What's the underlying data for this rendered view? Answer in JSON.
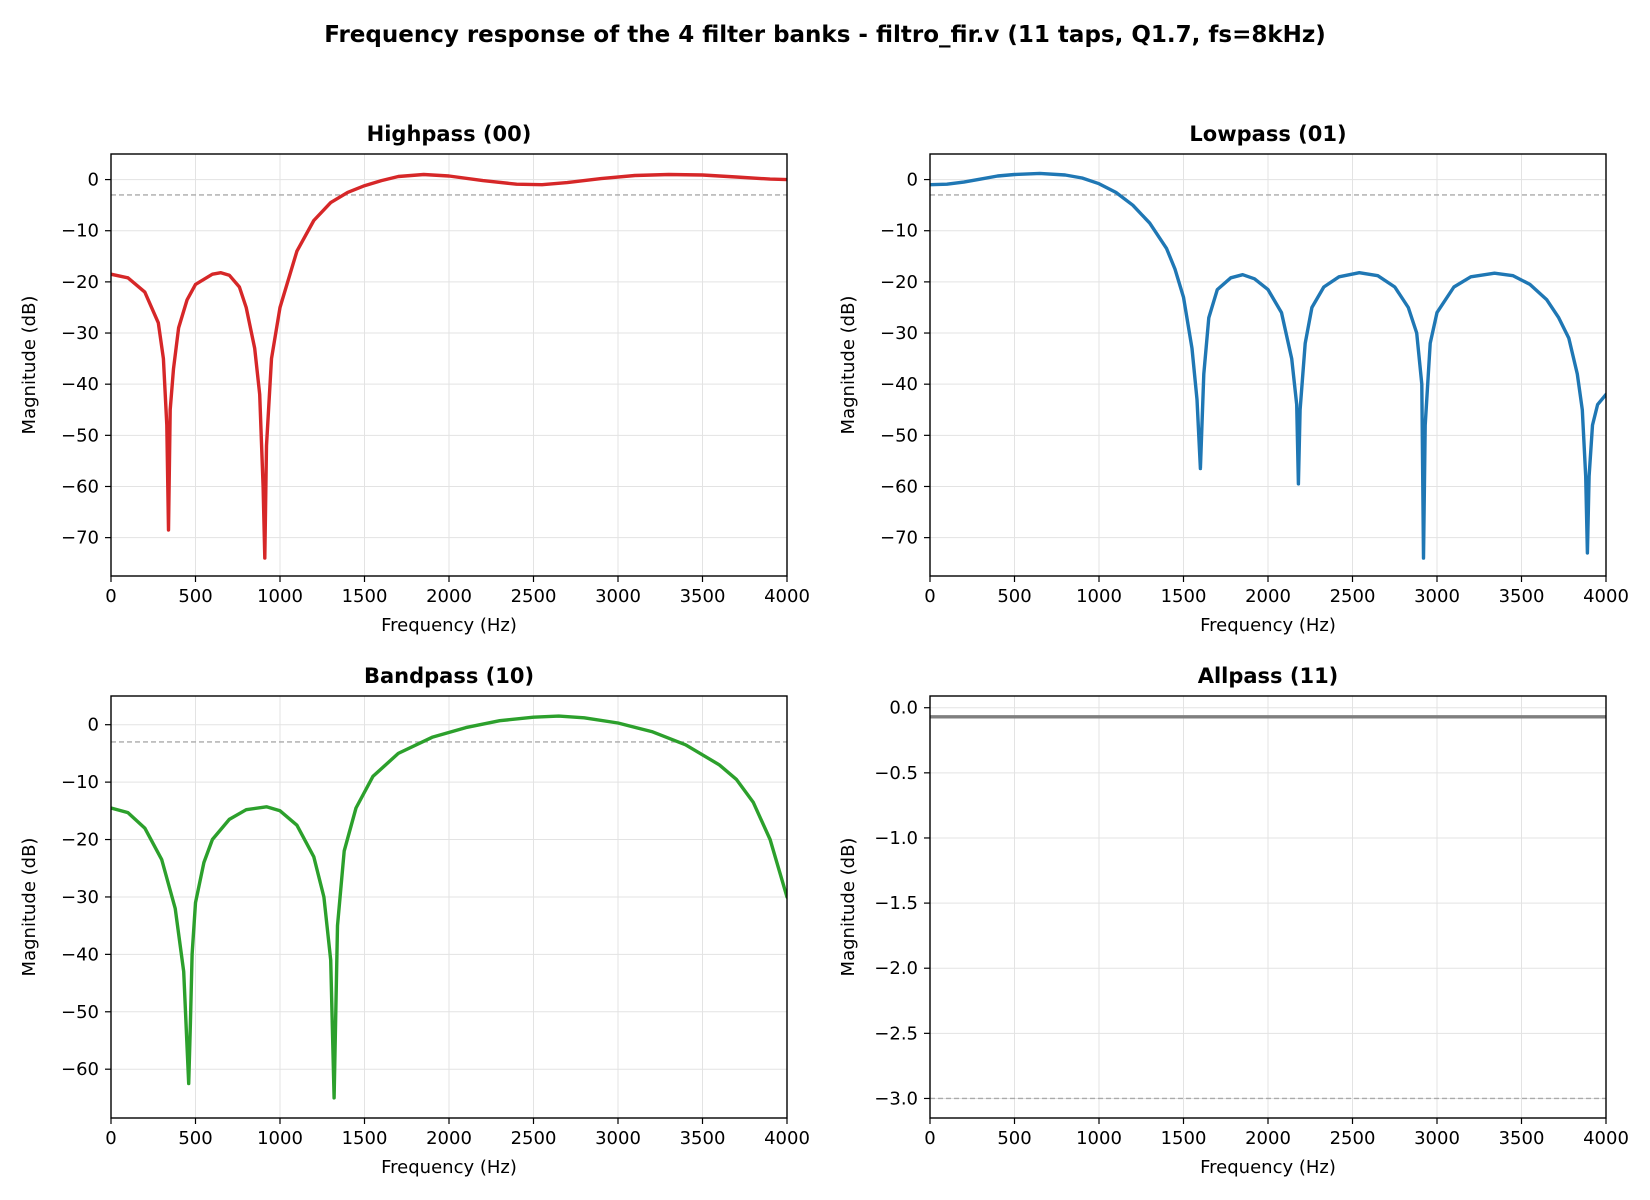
{
  "figure": {
    "title": "Frequency response of the 4 filter banks - filtro_fir.v (11 taps, Q1.7, fs=8kHz)"
  },
  "chart_data": [
    {
      "type": "line",
      "title": "Highpass (00)",
      "xlabel": "Frequency (Hz)",
      "ylabel": "Magnitude (dB)",
      "xlim": [
        0,
        4000
      ],
      "ylim": [
        -77.5,
        5
      ],
      "xticks": [
        0,
        500,
        1000,
        1500,
        2000,
        2500,
        3000,
        3500,
        4000
      ],
      "yticks": [
        0,
        -10,
        -20,
        -30,
        -40,
        -50,
        -60,
        -70
      ],
      "grid": true,
      "reference_line_db": -3,
      "color": "#d62728",
      "x": [
        0,
        100,
        200,
        280,
        310,
        330,
        340,
        350,
        370,
        400,
        450,
        500,
        600,
        650,
        700,
        760,
        800,
        850,
        880,
        900,
        910,
        920,
        950,
        1000,
        1100,
        1200,
        1300,
        1400,
        1500,
        1600,
        1700,
        1850,
        2000,
        2200,
        2400,
        2550,
        2700,
        2900,
        3100,
        3300,
        3500,
        3700,
        3900,
        4000
      ],
      "values": [
        -18.5,
        -19.2,
        -22,
        -28,
        -35,
        -48,
        -68.5,
        -45,
        -37,
        -29,
        -23.5,
        -20.5,
        -18.5,
        -18.2,
        -18.7,
        -21,
        -25,
        -33,
        -42,
        -60,
        -74,
        -52,
        -35,
        -25,
        -14,
        -8,
        -4.5,
        -2.5,
        -1.2,
        -0.2,
        0.6,
        1.0,
        0.7,
        -0.2,
        -0.9,
        -1.0,
        -0.6,
        0.2,
        0.8,
        1.0,
        0.9,
        0.5,
        0.1,
        0
      ]
    },
    {
      "type": "line",
      "title": "Lowpass (01)",
      "xlabel": "Frequency (Hz)",
      "ylabel": "Magnitude (dB)",
      "xlim": [
        0,
        4000
      ],
      "ylim": [
        -77.5,
        5
      ],
      "xticks": [
        0,
        500,
        1000,
        1500,
        2000,
        2500,
        3000,
        3500,
        4000
      ],
      "yticks": [
        0,
        -10,
        -20,
        -30,
        -40,
        -50,
        -60,
        -70
      ],
      "grid": true,
      "reference_line_db": -3,
      "color": "#1f77b4",
      "x": [
        0,
        100,
        200,
        300,
        400,
        500,
        650,
        800,
        900,
        1000,
        1100,
        1200,
        1300,
        1400,
        1450,
        1500,
        1550,
        1580,
        1600,
        1620,
        1650,
        1700,
        1780,
        1850,
        1920,
        2000,
        2080,
        2140,
        2170,
        2180,
        2190,
        2220,
        2260,
        2330,
        2420,
        2540,
        2650,
        2750,
        2830,
        2880,
        2910,
        2920,
        2930,
        2960,
        3000,
        3100,
        3200,
        3340,
        3450,
        3550,
        3650,
        3720,
        3780,
        3830,
        3860,
        3880,
        3890,
        3900,
        3920,
        3950,
        4000
      ],
      "values": [
        -1.0,
        -0.9,
        -0.5,
        0.1,
        0.7,
        1.0,
        1.2,
        0.9,
        0.3,
        -0.8,
        -2.5,
        -5.0,
        -8.5,
        -13.5,
        -17.5,
        -23,
        -33,
        -43,
        -56.5,
        -38,
        -27,
        -21.5,
        -19.2,
        -18.6,
        -19.4,
        -21.5,
        -26,
        -35,
        -44,
        -59.5,
        -45,
        -32,
        -25,
        -21,
        -19,
        -18.2,
        -18.8,
        -21,
        -25,
        -30,
        -40,
        -74,
        -48,
        -32,
        -26,
        -21,
        -19,
        -18.3,
        -18.8,
        -20.5,
        -23.5,
        -27,
        -31,
        -38,
        -45,
        -58,
        -73,
        -58,
        -48,
        -44,
        -42
      ]
    },
    {
      "type": "line",
      "title": "Bandpass (10)",
      "xlabel": "Frequency (Hz)",
      "ylabel": "Magnitude (dB)",
      "xlim": [
        0,
        4000
      ],
      "ylim": [
        -68.5,
        5
      ],
      "xticks": [
        0,
        500,
        1000,
        1500,
        2000,
        2500,
        3000,
        3500,
        4000
      ],
      "yticks": [
        0,
        -10,
        -20,
        -30,
        -40,
        -50,
        -60
      ],
      "grid": true,
      "reference_line_db": -3,
      "color": "#2ca02c",
      "x": [
        0,
        100,
        200,
        300,
        380,
        430,
        460,
        470,
        480,
        500,
        550,
        600,
        700,
        800,
        920,
        1000,
        1100,
        1200,
        1260,
        1300,
        1320,
        1330,
        1340,
        1380,
        1450,
        1550,
        1700,
        1900,
        2100,
        2300,
        2500,
        2650,
        2800,
        3000,
        3200,
        3400,
        3600,
        3700,
        3800,
        3900,
        4000
      ],
      "values": [
        -14.5,
        -15.3,
        -18,
        -23.5,
        -32,
        -43,
        -62.5,
        -52,
        -40,
        -31,
        -24,
        -20,
        -16.5,
        -14.8,
        -14.3,
        -15.0,
        -17.5,
        -23,
        -30,
        -41,
        -65,
        -50,
        -35,
        -22,
        -14.5,
        -9,
        -5,
        -2.2,
        -0.5,
        0.7,
        1.3,
        1.5,
        1.2,
        0.3,
        -1.2,
        -3.5,
        -7,
        -9.5,
        -13.5,
        -20,
        -30
      ]
    },
    {
      "type": "line",
      "title": "Allpass (11)",
      "xlabel": "Frequency (Hz)",
      "ylabel": "Magnitude (dB)",
      "xlim": [
        0,
        4000
      ],
      "ylim": [
        -3.15,
        0.09
      ],
      "xticks": [
        0,
        500,
        1000,
        1500,
        2000,
        2500,
        3000,
        3500,
        4000
      ],
      "yticks": [
        0.0,
        -0.5,
        -1.0,
        -1.5,
        -2.0,
        -2.5,
        -3.0
      ],
      "ytick_labels": [
        "0.0",
        "−0.5",
        "−1.0",
        "−1.5",
        "−2.0",
        "−2.5",
        "−3.0"
      ],
      "grid": true,
      "reference_line_db": -3,
      "color": "#7f7f7f",
      "x": [
        0,
        4000
      ],
      "values": [
        -0.07,
        -0.07
      ]
    }
  ]
}
